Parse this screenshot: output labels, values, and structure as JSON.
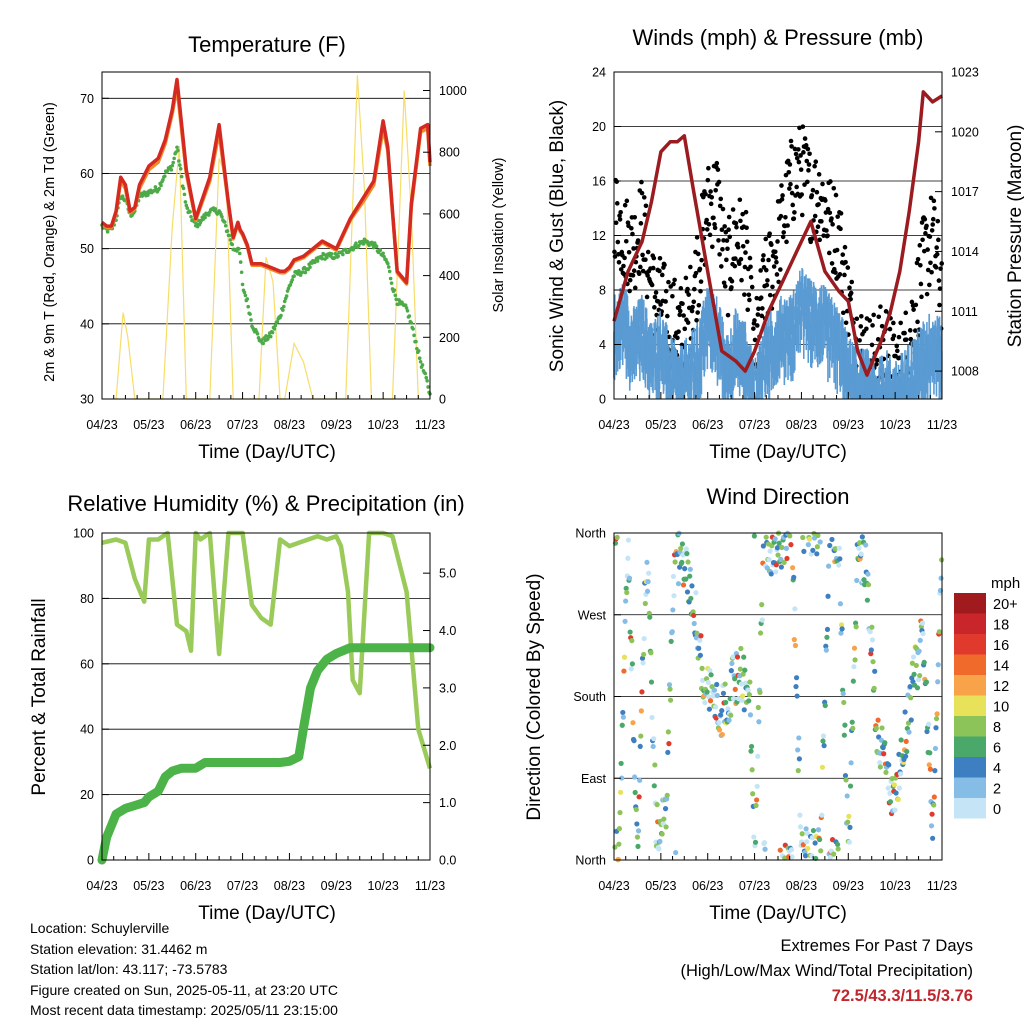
{
  "colors": {
    "temp_red": "#d42a22",
    "temp_orange": "#f08a2a",
    "dewpoint_green": "#4cab48",
    "solar_yellow": "#f7dd6a",
    "wind_blue": "#5a9bd3",
    "gust_black": "#000000",
    "pressure_maroon": "#9b1c20",
    "rh_lightgreen": "#9acb5a",
    "precip_green": "#4cb349"
  },
  "time_ticks": [
    "04/23",
    "05/23",
    "06/23",
    "07/23",
    "08/23",
    "09/23",
    "10/23",
    "11/23"
  ],
  "panels": {
    "temperature": {
      "title": "Temperature (F)",
      "xlabel": "Time (Day/UTC)",
      "ylabel_left": "2m & 9m T (Red, Orange) & 2m Td (Green)",
      "ylabel_right": "Solar Insolation (Yellow)",
      "yticks_left": [
        "30",
        "40",
        "50",
        "60",
        "70"
      ],
      "yticks_right": [
        "0",
        "200",
        "400",
        "600",
        "800",
        "1000"
      ]
    },
    "winds": {
      "title": "Winds (mph) & Pressure (mb)",
      "xlabel": "Time (Day/UTC)",
      "ylabel_left": "Sonic Wind & Gust (Blue, Black)",
      "ylabel_right": "Station Pressure (Maroon)",
      "yticks_left": [
        "0",
        "4",
        "8",
        "12",
        "16",
        "20",
        "24"
      ],
      "yticks_right": [
        "1008",
        "1011",
        "1014",
        "1017",
        "1020",
        "1023"
      ]
    },
    "humidity": {
      "title": "Relative Humidity (%) & Precipitation (in)",
      "xlabel": "Time (Day/UTC)",
      "ylabel_left": "Percent & Total Rainfall",
      "yticks_left": [
        "0",
        "20",
        "40",
        "60",
        "80",
        "100"
      ],
      "yticks_right": [
        "0.0",
        "1.0",
        "2.0",
        "3.0",
        "4.0",
        "5.0"
      ]
    },
    "direction": {
      "title": "Wind Direction",
      "xlabel": "Time (Day/UTC)",
      "ylabel_left": "Direction (Colored By Speed)",
      "yticks_left": [
        "North",
        "East",
        "South",
        "West",
        "North"
      ],
      "legend_title": "mph",
      "legend_labels": [
        "20+",
        "18",
        "16",
        "14",
        "12",
        "10",
        "8",
        "6",
        "4",
        "2",
        "0"
      ],
      "legend_colors": [
        "#a01a1e",
        "#c8262a",
        "#e03a2c",
        "#f06a2c",
        "#f8a24a",
        "#e8e15a",
        "#8cc45a",
        "#4aa86a",
        "#3d7fc1",
        "#86bde6",
        "#c5e5f7"
      ]
    }
  },
  "info": {
    "location": "Location: Schuylerville",
    "elevation": "Station elevation: 31.4462 m",
    "latlon": "Station lat/lon: 43.117; -73.5783",
    "created": "Figure created on Sun, 2025-05-11, at 23:20 UTC",
    "recent": "Most recent data timestamp: 2025/05/11 23:15:00"
  },
  "extremes": {
    "title": "Extremes For Past 7 Days",
    "subtitle": "(High/Low/Max Wind/Total Precipitation)",
    "values": "72.5/43.3/11.5/3.76"
  },
  "chart_data": [
    {
      "type": "line",
      "title": "Temperature (F)",
      "x": [
        0.0,
        0.1,
        0.2,
        0.3,
        0.4,
        0.5,
        0.6,
        0.7,
        0.8,
        1.0,
        1.2,
        1.35,
        1.5,
        1.6,
        1.8,
        2.0,
        2.3,
        2.5,
        2.7,
        2.8,
        2.9,
        2.95,
        3.0,
        3.1,
        3.2,
        3.4,
        3.6,
        3.8,
        3.9,
        4.0,
        4.1,
        4.3,
        4.5,
        4.7,
        5.0,
        5.3,
        5.6,
        5.8,
        6.0,
        6.1,
        6.2,
        6.3,
        6.5,
        6.6,
        6.8,
        6.95,
        7.0
      ],
      "ylim": [
        30,
        73.5
      ],
      "series": [
        {
          "name": "2m T",
          "values": [
            53.5,
            53.0,
            53.0,
            55.0,
            59.5,
            58.5,
            55.0,
            55.5,
            58.5,
            61.0,
            62.0,
            64.5,
            68.5,
            72.5,
            60.5,
            54.0,
            59.5,
            66.5,
            56.0,
            51.5,
            53.5,
            52.5,
            52.0,
            50.5,
            48.0,
            48.0,
            47.5,
            47.0,
            47.0,
            47.5,
            48.5,
            49.0,
            50.0,
            51.0,
            50.0,
            54.0,
            57.0,
            59.0,
            67.0,
            63.5,
            55.0,
            47.0,
            45.5,
            56.0,
            66.0,
            66.5,
            61.5
          ]
        },
        {
          "name": "9m T",
          "values": [
            53.3,
            52.8,
            52.8,
            54.8,
            59.0,
            58.0,
            54.8,
            55.3,
            58.0,
            60.5,
            61.5,
            64.0,
            68.0,
            71.5,
            60.0,
            53.8,
            59.0,
            65.5,
            55.8,
            51.3,
            53.3,
            52.3,
            51.8,
            50.3,
            47.8,
            47.8,
            47.3,
            46.8,
            46.8,
            47.3,
            48.3,
            48.8,
            49.8,
            50.8,
            49.8,
            53.8,
            56.5,
            58.5,
            66.0,
            63.0,
            54.8,
            46.8,
            45.3,
            55.5,
            65.5,
            66.0,
            61.0
          ]
        },
        {
          "name": "2m Td",
          "values": [
            53.0,
            52.5,
            52.5,
            54.0,
            57.0,
            56.5,
            54.5,
            55.0,
            57.0,
            57.5,
            58.0,
            60.0,
            61.0,
            63.5,
            55.5,
            53.0,
            55.0,
            55.0,
            52.0,
            50.0,
            50.0,
            49.0,
            45.0,
            43.0,
            40.0,
            37.5,
            38.5,
            41.0,
            43.0,
            45.0,
            46.5,
            47.0,
            48.0,
            49.0,
            49.0,
            50.0,
            51.0,
            50.5,
            49.0,
            48.0,
            45.0,
            43.0,
            42.0,
            40.0,
            35.0,
            32.0,
            30.5
          ]
        }
      ]
    },
    {
      "type": "line",
      "title": "Solar Insolation",
      "note_axis": "right",
      "x": [
        0.3,
        0.45,
        0.55,
        0.7,
        1.3,
        1.5,
        1.65,
        1.8,
        2.3,
        2.5,
        2.65,
        2.8,
        3.35,
        3.5,
        3.65,
        3.8,
        3.9,
        4.1,
        4.3,
        4.5,
        5.2,
        5.45,
        5.6,
        5.75,
        6.2,
        6.45,
        6.6,
        6.75
      ],
      "ylim": [
        0,
        1060
      ],
      "values": [
        0,
        280,
        200,
        0,
        0,
        560,
        820,
        0,
        0,
        780,
        720,
        0,
        0,
        460,
        380,
        0,
        0,
        180,
        120,
        0,
        0,
        1050,
        680,
        0,
        0,
        1000,
        600,
        0
      ]
    },
    {
      "type": "scatter",
      "title": "Winds (mph) & Pressure (mb)",
      "ylim": [
        0,
        24
      ],
      "series": [
        {
          "name": "Sonic Wind",
          "x": [
            0.0,
            0.2,
            0.4,
            0.6,
            0.8,
            1.0,
            1.2,
            1.4,
            1.6,
            1.8,
            2.0,
            2.2,
            2.4,
            2.6,
            2.8,
            3.0,
            3.2,
            3.4,
            3.6,
            3.8,
            4.0,
            4.2,
            4.4,
            4.6,
            4.8,
            5.0,
            5.2,
            5.4,
            5.6,
            5.8,
            6.0,
            6.2,
            6.4,
            6.6,
            6.8,
            7.0
          ],
          "values": [
            6,
            7,
            5,
            6,
            4,
            5,
            3,
            2,
            3,
            4,
            7,
            6,
            3,
            5,
            4,
            1,
            4,
            5,
            6,
            6,
            8,
            7,
            7,
            6,
            5,
            3,
            2,
            2,
            1,
            2,
            1,
            2,
            3,
            4,
            5,
            4
          ]
        },
        {
          "name": "Gust",
          "x": [
            0.0,
            0.2,
            0.4,
            0.6,
            0.8,
            1.0,
            1.2,
            1.4,
            1.6,
            1.8,
            2.0,
            2.2,
            2.4,
            2.6,
            2.8,
            3.0,
            3.2,
            3.4,
            3.6,
            3.8,
            4.0,
            4.2,
            4.4,
            4.6,
            4.8,
            5.0,
            5.2,
            5.4,
            5.6,
            5.8,
            6.0,
            6.2,
            6.4,
            6.6,
            6.8,
            7.0
          ],
          "values": [
            14,
            12,
            11,
            13,
            8,
            7,
            6,
            5,
            6,
            10,
            14,
            15,
            9,
            12,
            11,
            3,
            8,
            10,
            13,
            16,
            17,
            15,
            15,
            13,
            12,
            7,
            4,
            3,
            3,
            4,
            2,
            3,
            6,
            10,
            12,
            8
          ]
        }
      ]
    },
    {
      "type": "line",
      "title": "Station Pressure",
      "note_axis": "right",
      "x": [
        0.0,
        0.3,
        0.6,
        0.8,
        1.0,
        1.2,
        1.35,
        1.5,
        1.7,
        2.0,
        2.3,
        2.6,
        2.8,
        3.0,
        3.3,
        3.6,
        3.9,
        4.2,
        4.5,
        4.8,
        5.0,
        5.2,
        5.4,
        5.7,
        5.9,
        6.1,
        6.3,
        6.5,
        6.6,
        6.8,
        7.0
      ],
      "ylim": [
        1006.6,
        1023
      ],
      "values": [
        1010.5,
        1013.0,
        1014.5,
        1016.5,
        1019.0,
        1019.5,
        1019.5,
        1019.8,
        1017.0,
        1013.0,
        1009.0,
        1008.5,
        1008.0,
        1009.0,
        1011.0,
        1012.5,
        1014.0,
        1015.5,
        1013.0,
        1012.0,
        1011.5,
        1009.0,
        1007.8,
        1009.5,
        1011.0,
        1013.0,
        1016.0,
        1019.5,
        1022.0,
        1021.5,
        1021.8
      ]
    },
    {
      "type": "line",
      "title": "Relative Humidity (%) & Precipitation (in)",
      "series": [
        {
          "name": "Relative Humidity",
          "axis": "left",
          "ylim": [
            0,
            100
          ],
          "x": [
            0.0,
            0.3,
            0.5,
            0.7,
            0.9,
            1.0,
            1.2,
            1.4,
            1.6,
            1.8,
            1.9,
            2.0,
            2.1,
            2.3,
            2.5,
            2.7,
            2.8,
            3.0,
            3.2,
            3.4,
            3.6,
            3.8,
            4.0,
            4.2,
            4.4,
            4.6,
            4.8,
            5.0,
            5.1,
            5.25,
            5.35,
            5.5,
            5.7,
            5.8,
            6.0,
            6.2,
            6.5,
            6.75,
            7.0
          ],
          "values": [
            97,
            98,
            97,
            86,
            79,
            98,
            98,
            100,
            72,
            70,
            64,
            100,
            98,
            100,
            63,
            100,
            100,
            100,
            78,
            74,
            72,
            98,
            96,
            97,
            98,
            99,
            98,
            99,
            96,
            82,
            55,
            51,
            100,
            100,
            100,
            99,
            82,
            40,
            28
          ]
        },
        {
          "name": "Total Precipitation",
          "axis": "right",
          "ylim": [
            0,
            5.7
          ],
          "x": [
            0.0,
            0.05,
            0.1,
            0.2,
            0.3,
            0.5,
            0.7,
            0.9,
            1.0,
            1.2,
            1.35,
            1.5,
            1.7,
            2.0,
            2.2,
            2.5,
            3.0,
            3.5,
            3.8,
            4.0,
            4.2,
            4.3,
            4.45,
            4.6,
            4.8,
            5.0,
            5.3,
            5.6,
            6.0,
            6.5,
            7.0
          ],
          "values": [
            0.0,
            0.2,
            0.4,
            0.6,
            0.8,
            0.9,
            0.95,
            1.0,
            1.1,
            1.2,
            1.45,
            1.55,
            1.6,
            1.6,
            1.7,
            1.7,
            1.7,
            1.7,
            1.7,
            1.72,
            1.8,
            2.3,
            3.0,
            3.3,
            3.5,
            3.6,
            3.7,
            3.7,
            3.7,
            3.7,
            3.7
          ]
        }
      ]
    },
    {
      "type": "scatter",
      "title": "Wind Direction",
      "ylim": [
        0,
        360
      ],
      "series": [
        {
          "name": "Direction",
          "x": [
            0.1,
            0.3,
            0.5,
            0.7,
            0.9,
            1.1,
            1.3,
            1.5,
            1.7,
            1.9,
            2.1,
            2.3,
            2.5,
            2.7,
            2.9,
            3.0,
            3.2,
            3.4,
            3.6,
            3.8,
            4.0,
            4.2,
            4.4,
            4.6,
            4.8,
            5.0,
            5.2,
            5.4,
            5.6,
            5.8,
            6.0,
            6.2,
            6.4,
            6.6,
            6.8,
            7.0
          ],
          "values": [
            5,
            355,
            10,
            350,
            30,
            45,
            340,
            320,
            290,
            200,
            180,
            160,
            190,
            210,
            170,
            10,
            355,
            340,
            350,
            350,
            10,
            5,
            8,
            355,
            350,
            5,
            340,
            320,
            150,
            100,
            60,
            130,
            200,
            250,
            40,
            330
          ]
        }
      ]
    }
  ]
}
